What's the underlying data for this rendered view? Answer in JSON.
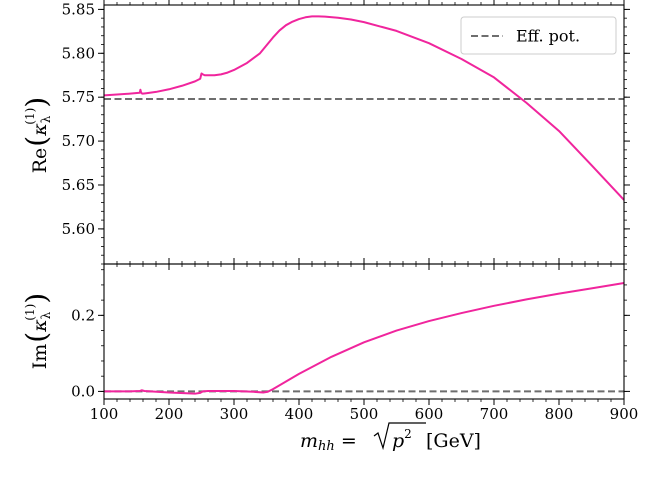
{
  "chart_data": [
    {
      "panel": "top",
      "type": "line",
      "ylabel": "Re(κλ(1))",
      "ylabel_parts": {
        "prefix": "Re",
        "symbol": "κ",
        "sub": "λ",
        "sup": "(1)"
      },
      "xlim": [
        100,
        900
      ],
      "ylim": [
        5.56,
        5.855
      ],
      "yticks": [
        5.6,
        5.65,
        5.7,
        5.75,
        5.8,
        5.85
      ],
      "ytick_labels": [
        "5.60",
        "5.65",
        "5.70",
        "5.75",
        "5.80",
        "5.85"
      ],
      "grid": false,
      "legend": {
        "placement": "top-right",
        "entries": [
          "Eff. pot."
        ]
      },
      "series": [
        {
          "name": "",
          "color": "#f0259d",
          "style": "solid",
          "x": [
            100,
            120,
            140,
            155,
            156,
            157,
            158,
            159,
            160,
            165,
            180,
            200,
            220,
            240,
            248,
            250,
            252,
            255,
            260,
            270,
            280,
            290,
            300,
            320,
            340,
            350,
            360,
            370,
            380,
            390,
            400,
            410,
            420,
            430,
            440,
            460,
            480,
            500,
            550,
            600,
            650,
            700,
            750,
            800,
            850,
            900
          ],
          "y": [
            5.752,
            5.753,
            5.754,
            5.755,
            5.7585,
            5.7555,
            5.7545,
            5.754,
            5.754,
            5.7545,
            5.756,
            5.759,
            5.763,
            5.768,
            5.771,
            5.777,
            5.776,
            5.775,
            5.775,
            5.775,
            5.776,
            5.778,
            5.781,
            5.789,
            5.8,
            5.809,
            5.818,
            5.826,
            5.832,
            5.836,
            5.839,
            5.841,
            5.842,
            5.842,
            5.8417,
            5.8405,
            5.8385,
            5.8355,
            5.8255,
            5.8115,
            5.7935,
            5.7725,
            5.7435,
            5.7115,
            5.6725,
            5.633
          ]
        },
        {
          "name": "Eff. pot.",
          "color": "#6e6e6e",
          "style": "dashed",
          "x": [
            100,
            900
          ],
          "y": [
            5.748,
            5.748
          ]
        }
      ]
    },
    {
      "panel": "bottom",
      "type": "line",
      "xlabel": "m_hh = √p² [GeV]",
      "xlabel_parts": {
        "m": "m",
        "sub": "hh",
        "eq": " = ",
        "sqrt_body": "p",
        "sqrt_sup": "2",
        "unit": " [GeV]"
      },
      "ylabel": "Im(κλ(1))",
      "ylabel_parts": {
        "prefix": "Im",
        "symbol": "κ",
        "sub": "λ",
        "sup": "(1)"
      },
      "xlim": [
        100,
        900
      ],
      "ylim": [
        -0.02,
        0.335
      ],
      "xticks": [
        100,
        200,
        300,
        400,
        500,
        600,
        700,
        800,
        900
      ],
      "xtick_labels": [
        "100",
        "200",
        "300",
        "400",
        "500",
        "600",
        "700",
        "800",
        "900"
      ],
      "yticks": [
        0.0,
        0.2
      ],
      "ytick_labels": [
        "0.0",
        "0.2"
      ],
      "grid": false,
      "series": [
        {
          "name": "",
          "color": "#f0259d",
          "style": "solid",
          "x": [
            100,
            140,
            155,
            158,
            162,
            200,
            240,
            248,
            252,
            260,
            300,
            330,
            345,
            352,
            360,
            380,
            400,
            450,
            500,
            550,
            600,
            650,
            700,
            750,
            800,
            850,
            900
          ],
          "y": [
            0.0,
            0.0,
            0.001,
            0.003,
            0.001,
            -0.003,
            -0.006,
            -0.004,
            0.0,
            0.001,
            0.001,
            -0.001,
            -0.003,
            -0.001,
            0.006,
            0.026,
            0.046,
            0.091,
            0.129,
            0.16,
            0.185,
            0.206,
            0.225,
            0.242,
            0.257,
            0.271,
            0.285
          ]
        },
        {
          "name": "Eff. pot.",
          "color": "#6e6e6e",
          "style": "dashed",
          "x": [
            100,
            900
          ],
          "y": [
            0.0,
            0.0
          ]
        }
      ]
    }
  ]
}
